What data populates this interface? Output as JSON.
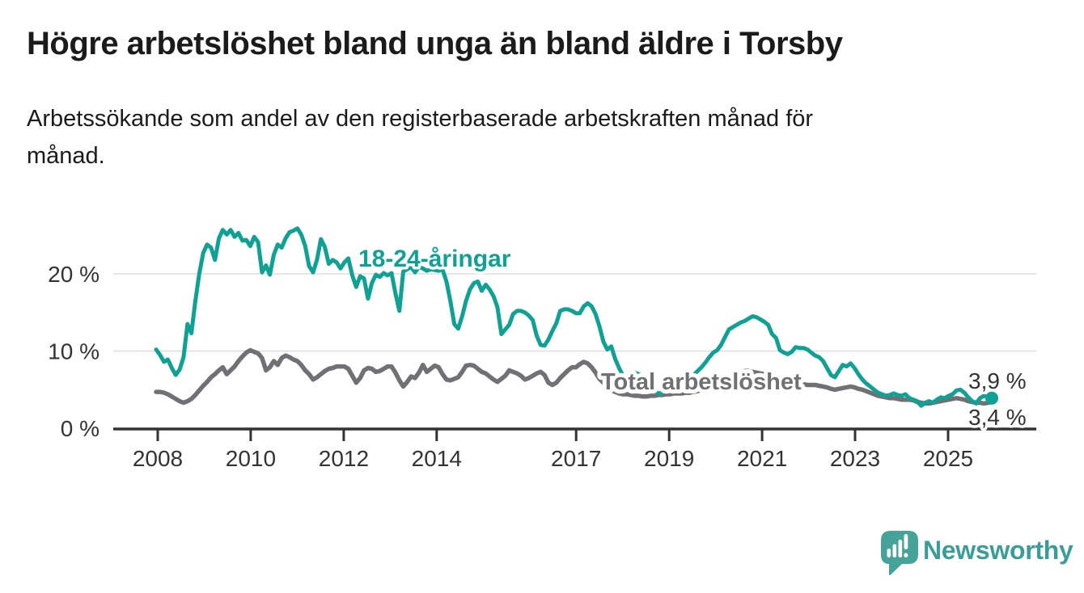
{
  "header": {
    "title": "Högre arbetslöshet bland unga än bland äldre i Torsby",
    "subtitle_line1": "Arbetssökande som andel av den registerbaserade arbetskraften månad för",
    "subtitle_line2": "månad."
  },
  "footer": {
    "brand": "Newsworthy",
    "logo_icon": "speech-bubble-bar-chart"
  },
  "colors": {
    "young_line": "#0fa294",
    "total_line": "#717175",
    "axis": "#333333",
    "gridline": "#dedede",
    "text": "#1b1b1b",
    "logo_teal": "#46a39a"
  },
  "chart_data": {
    "type": "line",
    "title": "Högre arbetslöshet bland unga än bland äldre i Torsby",
    "subtitle": "Arbetssökande som andel av den registerbaserade arbetskraften månad för månad.",
    "xlabel": "",
    "ylabel": "",
    "frequency": "monthly",
    "start_month": "2008-01",
    "end_month": "2025-10",
    "ylim": [
      0,
      27
    ],
    "grid": "horizontal",
    "legend_position": "inline-labels",
    "x_tick_labels": [
      "2008",
      "2010",
      "2012",
      "2014",
      "2017",
      "2019",
      "2021",
      "2023",
      "2025"
    ],
    "y_tick_values": [
      0,
      10,
      20
    ],
    "y_tick_labels": [
      "0 %",
      "10 %",
      "20 %"
    ],
    "annotations": {
      "young_label": "18-24-åringar",
      "total_label": "Total arbetslöshet",
      "young_end_value": "3,9 %",
      "total_end_value": "3,4 %"
    },
    "series": [
      {
        "name": "18-24-åringar",
        "color": "#0fa294",
        "end_value": 3.9,
        "values": [
          10.2,
          9.5,
          8.6,
          8.9,
          7.8,
          6.9,
          7.6,
          9.2,
          13.5,
          12.3,
          16.5,
          20.0,
          22.7,
          23.8,
          23.4,
          21.8,
          24.6,
          25.7,
          25.1,
          25.7,
          24.8,
          25.3,
          24.3,
          24.4,
          23.6,
          24.8,
          24.1,
          20.2,
          21.1,
          19.9,
          22.5,
          23.8,
          23.4,
          24.6,
          25.4,
          25.6,
          25.9,
          25.1,
          23.6,
          21.0,
          20.2,
          21.8,
          24.5,
          23.5,
          21.3,
          21.8,
          21.5,
          20.7,
          21.5,
          22.0,
          19.8,
          18.3,
          19.7,
          19.4,
          16.8,
          18.8,
          19.9,
          19.6,
          20.1,
          19.8,
          20.1,
          17.5,
          15.2,
          20.3,
          20.6,
          20.9,
          20.2,
          20.9,
          20.7,
          20.4,
          20.6,
          20.5,
          20.4,
          20.6,
          19.0,
          16.5,
          13.5,
          12.9,
          14.5,
          16.5,
          18.0,
          18.8,
          19.0,
          17.8,
          18.6,
          18.0,
          17.1,
          15.7,
          12.2,
          12.8,
          13.4,
          14.8,
          15.2,
          15.2,
          15.0,
          14.6,
          14.0,
          12.0,
          10.8,
          10.7,
          11.5,
          12.6,
          13.6,
          15.2,
          15.4,
          15.4,
          15.2,
          14.9,
          14.9,
          15.8,
          16.2,
          15.8,
          14.8,
          13.2,
          11.2,
          10.2,
          10.6,
          9.0,
          7.8,
          6.8,
          6.5,
          6.8,
          7.2,
          7.0,
          6.5,
          5.8,
          5.2,
          4.8,
          4.5,
          4.6,
          4.8,
          5.0,
          5.3,
          5.6,
          5.9,
          6.2,
          6.5,
          6.9,
          7.4,
          7.9,
          8.5,
          9.2,
          9.8,
          10.1,
          10.8,
          11.8,
          12.8,
          13.1,
          13.4,
          13.7,
          13.9,
          14.2,
          14.5,
          14.4,
          14.1,
          13.8,
          13.4,
          12.2,
          11.7,
          10.1,
          9.8,
          9.6,
          9.9,
          10.5,
          10.4,
          10.4,
          10.2,
          9.8,
          9.4,
          9.2,
          8.7,
          7.8,
          6.9,
          6.6,
          7.4,
          8.2,
          8.0,
          8.4,
          7.8,
          7.0,
          6.3,
          5.8,
          5.4,
          5.0,
          4.6,
          4.4,
          4.2,
          4.3,
          4.5,
          4.3,
          4.2,
          4.4,
          3.9,
          3.7,
          3.5,
          2.9,
          3.3,
          3.5,
          3.3,
          3.7,
          4.0,
          3.9,
          4.2,
          4.4,
          4.9,
          5.0,
          4.6,
          4.0,
          3.5,
          3.2,
          3.9,
          4.2,
          4.0,
          3.9
        ]
      },
      {
        "name": "Total arbetslöshet",
        "color": "#717175",
        "end_value": 3.4,
        "values": [
          4.7,
          4.7,
          4.6,
          4.4,
          4.1,
          3.8,
          3.5,
          3.3,
          3.5,
          3.8,
          4.3,
          4.9,
          5.5,
          6.0,
          6.6,
          7.0,
          7.5,
          7.9,
          7.0,
          7.5,
          8.0,
          8.7,
          9.3,
          9.8,
          10.1,
          9.9,
          9.7,
          9.1,
          7.5,
          7.9,
          8.7,
          8.2,
          9.1,
          9.4,
          9.2,
          8.9,
          8.7,
          8.2,
          7.5,
          7.0,
          6.3,
          6.6,
          7.0,
          7.4,
          7.7,
          7.8,
          8.0,
          8.0,
          8.0,
          7.7,
          6.8,
          5.9,
          6.5,
          7.5,
          7.8,
          7.7,
          7.3,
          7.4,
          7.7,
          8.0,
          8.0,
          7.2,
          6.2,
          5.4,
          6.0,
          6.7,
          6.5,
          7.2,
          8.2,
          7.3,
          7.7,
          8.1,
          7.9,
          7.0,
          6.3,
          6.2,
          6.4,
          6.6,
          7.3,
          8.1,
          8.2,
          8.1,
          7.7,
          7.3,
          7.1,
          6.7,
          6.3,
          6.0,
          6.4,
          6.8,
          7.5,
          7.3,
          7.1,
          6.8,
          6.3,
          6.5,
          6.8,
          7.1,
          7.3,
          6.9,
          5.9,
          5.6,
          5.9,
          6.5,
          7.0,
          7.5,
          7.9,
          7.9,
          8.3,
          8.6,
          8.4,
          7.9,
          7.2,
          6.4,
          5.9,
          5.3,
          4.9,
          4.7,
          4.5,
          4.4,
          4.4,
          4.3,
          4.2,
          4.2,
          4.1,
          4.1,
          4.2,
          4.2,
          4.3,
          4.3,
          4.4,
          4.4,
          4.5,
          4.5,
          4.5,
          4.6,
          4.6,
          4.7,
          4.8,
          5.0,
          5.1,
          5.3,
          5.5,
          5.7,
          5.9,
          6.1,
          6.4,
          6.8,
          7.1,
          7.3,
          7.4,
          7.4,
          7.3,
          7.2,
          7.1,
          7.0,
          6.9,
          6.8,
          6.6,
          6.4,
          6.2,
          6.1,
          6.0,
          5.9,
          5.8,
          5.7,
          5.6,
          5.6,
          5.6,
          5.5,
          5.4,
          5.3,
          5.1,
          5.0,
          5.1,
          5.2,
          5.3,
          5.4,
          5.3,
          5.1,
          5.0,
          4.8,
          4.6,
          4.4,
          4.2,
          4.1,
          4.0,
          3.9,
          3.9,
          3.8,
          3.7,
          3.7,
          3.7,
          3.6,
          3.4,
          3.3,
          3.2,
          3.2,
          3.3,
          3.4,
          3.5,
          3.6,
          3.7,
          3.8,
          3.9,
          3.8,
          3.7,
          3.5,
          3.4,
          3.3,
          3.3,
          3.2,
          3.3,
          3.4
        ]
      }
    ]
  }
}
